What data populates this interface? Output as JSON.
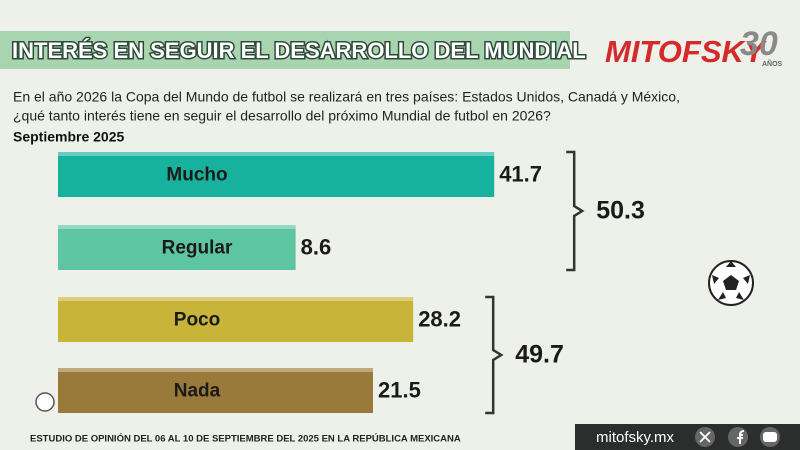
{
  "title": "INTERÉS EN SEGUIR EL DESARROLLO DEL MUNDIAL",
  "logo": {
    "name": "MITOFSKY",
    "number": "30",
    "caption": "AÑOS"
  },
  "chart_data": {
    "type": "bar",
    "orientation": "horizontal",
    "question": [
      "En el año 2026 la Copa del Mundo de futbol se realizará en tres países: Estados Unidos, Canadá y México,",
      "¿qué tanto interés tiene en seguir el desarrollo del próximo Mundial de futbol en 2026?"
    ],
    "subtitle": "Septiembre 2025",
    "categories": [
      "Mucho",
      "Regular",
      "Poco",
      "Nada"
    ],
    "values": [
      41.7,
      8.6,
      28.2,
      21.5
    ],
    "colors": [
      "#17b29e",
      "#5ec5a2",
      "#c9b43a",
      "#9a7a3b"
    ],
    "group_totals": [
      50.3,
      49.7
    ]
  },
  "footer": {
    "source": "ESTUDIO DE OPINIÓN DEL 06 AL 10 DE SEPTIEMBRE DEL 2025 EN LA REPÚBLICA MEXICANA",
    "website": "mitofsky.mx"
  }
}
